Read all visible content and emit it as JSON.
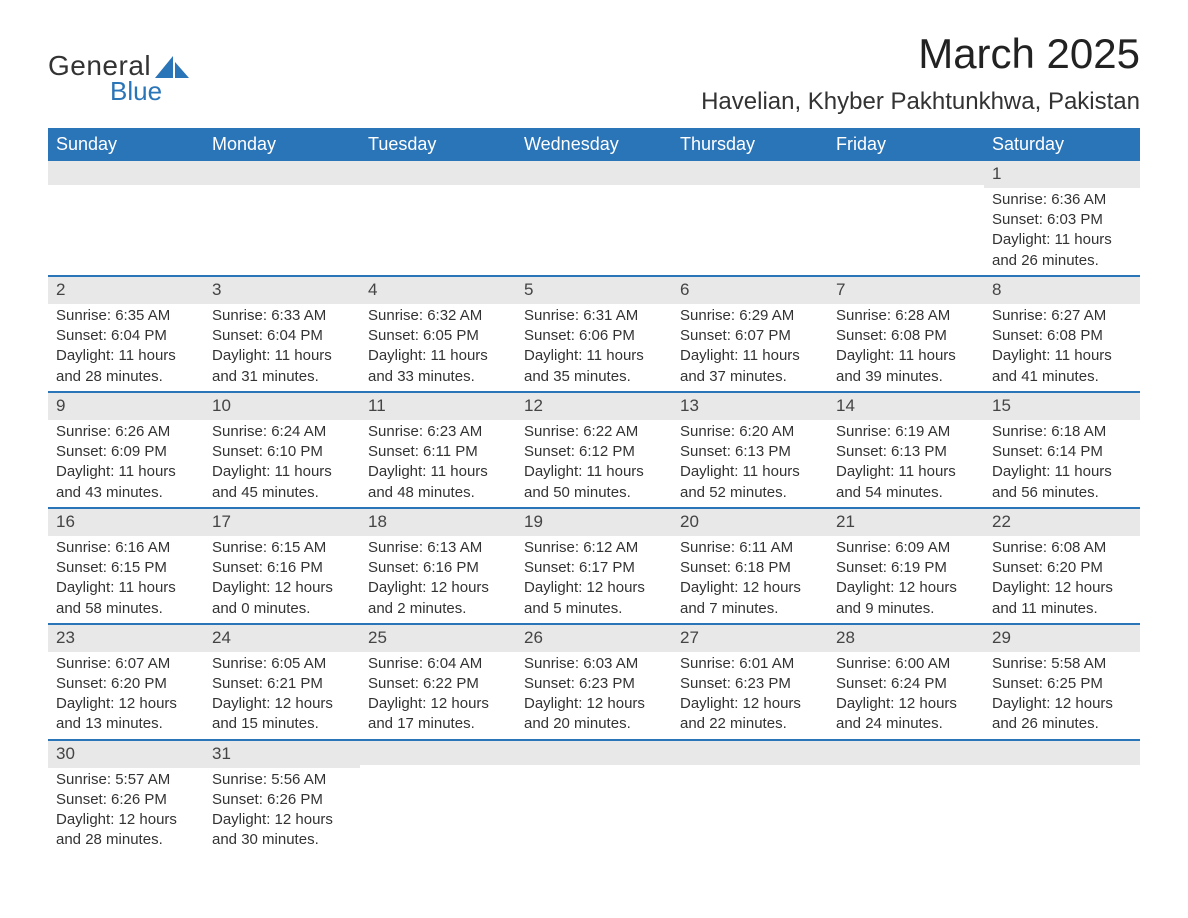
{
  "logo": {
    "text_general": "General",
    "text_blue": "Blue",
    "shape_color": "#2a74b8"
  },
  "title": "March 2025",
  "location": "Havelian, Khyber Pakhtunkhwa, Pakistan",
  "colors": {
    "header_bg": "#2a74b8",
    "header_text": "#ffffff",
    "daynum_bg": "#e8e8e8",
    "row_border": "#2a74b8",
    "body_text": "#333333",
    "page_bg": "#ffffff"
  },
  "day_headers": [
    "Sunday",
    "Monday",
    "Tuesday",
    "Wednesday",
    "Thursday",
    "Friday",
    "Saturday"
  ],
  "weeks": [
    [
      null,
      null,
      null,
      null,
      null,
      null,
      {
        "n": "1",
        "sr": "Sunrise: 6:36 AM",
        "ss": "Sunset: 6:03 PM",
        "d1": "Daylight: 11 hours",
        "d2": "and 26 minutes."
      }
    ],
    [
      {
        "n": "2",
        "sr": "Sunrise: 6:35 AM",
        "ss": "Sunset: 6:04 PM",
        "d1": "Daylight: 11 hours",
        "d2": "and 28 minutes."
      },
      {
        "n": "3",
        "sr": "Sunrise: 6:33 AM",
        "ss": "Sunset: 6:04 PM",
        "d1": "Daylight: 11 hours",
        "d2": "and 31 minutes."
      },
      {
        "n": "4",
        "sr": "Sunrise: 6:32 AM",
        "ss": "Sunset: 6:05 PM",
        "d1": "Daylight: 11 hours",
        "d2": "and 33 minutes."
      },
      {
        "n": "5",
        "sr": "Sunrise: 6:31 AM",
        "ss": "Sunset: 6:06 PM",
        "d1": "Daylight: 11 hours",
        "d2": "and 35 minutes."
      },
      {
        "n": "6",
        "sr": "Sunrise: 6:29 AM",
        "ss": "Sunset: 6:07 PM",
        "d1": "Daylight: 11 hours",
        "d2": "and 37 minutes."
      },
      {
        "n": "7",
        "sr": "Sunrise: 6:28 AM",
        "ss": "Sunset: 6:08 PM",
        "d1": "Daylight: 11 hours",
        "d2": "and 39 minutes."
      },
      {
        "n": "8",
        "sr": "Sunrise: 6:27 AM",
        "ss": "Sunset: 6:08 PM",
        "d1": "Daylight: 11 hours",
        "d2": "and 41 minutes."
      }
    ],
    [
      {
        "n": "9",
        "sr": "Sunrise: 6:26 AM",
        "ss": "Sunset: 6:09 PM",
        "d1": "Daylight: 11 hours",
        "d2": "and 43 minutes."
      },
      {
        "n": "10",
        "sr": "Sunrise: 6:24 AM",
        "ss": "Sunset: 6:10 PM",
        "d1": "Daylight: 11 hours",
        "d2": "and 45 minutes."
      },
      {
        "n": "11",
        "sr": "Sunrise: 6:23 AM",
        "ss": "Sunset: 6:11 PM",
        "d1": "Daylight: 11 hours",
        "d2": "and 48 minutes."
      },
      {
        "n": "12",
        "sr": "Sunrise: 6:22 AM",
        "ss": "Sunset: 6:12 PM",
        "d1": "Daylight: 11 hours",
        "d2": "and 50 minutes."
      },
      {
        "n": "13",
        "sr": "Sunrise: 6:20 AM",
        "ss": "Sunset: 6:13 PM",
        "d1": "Daylight: 11 hours",
        "d2": "and 52 minutes."
      },
      {
        "n": "14",
        "sr": "Sunrise: 6:19 AM",
        "ss": "Sunset: 6:13 PM",
        "d1": "Daylight: 11 hours",
        "d2": "and 54 minutes."
      },
      {
        "n": "15",
        "sr": "Sunrise: 6:18 AM",
        "ss": "Sunset: 6:14 PM",
        "d1": "Daylight: 11 hours",
        "d2": "and 56 minutes."
      }
    ],
    [
      {
        "n": "16",
        "sr": "Sunrise: 6:16 AM",
        "ss": "Sunset: 6:15 PM",
        "d1": "Daylight: 11 hours",
        "d2": "and 58 minutes."
      },
      {
        "n": "17",
        "sr": "Sunrise: 6:15 AM",
        "ss": "Sunset: 6:16 PM",
        "d1": "Daylight: 12 hours",
        "d2": "and 0 minutes."
      },
      {
        "n": "18",
        "sr": "Sunrise: 6:13 AM",
        "ss": "Sunset: 6:16 PM",
        "d1": "Daylight: 12 hours",
        "d2": "and 2 minutes."
      },
      {
        "n": "19",
        "sr": "Sunrise: 6:12 AM",
        "ss": "Sunset: 6:17 PM",
        "d1": "Daylight: 12 hours",
        "d2": "and 5 minutes."
      },
      {
        "n": "20",
        "sr": "Sunrise: 6:11 AM",
        "ss": "Sunset: 6:18 PM",
        "d1": "Daylight: 12 hours",
        "d2": "and 7 minutes."
      },
      {
        "n": "21",
        "sr": "Sunrise: 6:09 AM",
        "ss": "Sunset: 6:19 PM",
        "d1": "Daylight: 12 hours",
        "d2": "and 9 minutes."
      },
      {
        "n": "22",
        "sr": "Sunrise: 6:08 AM",
        "ss": "Sunset: 6:20 PM",
        "d1": "Daylight: 12 hours",
        "d2": "and 11 minutes."
      }
    ],
    [
      {
        "n": "23",
        "sr": "Sunrise: 6:07 AM",
        "ss": "Sunset: 6:20 PM",
        "d1": "Daylight: 12 hours",
        "d2": "and 13 minutes."
      },
      {
        "n": "24",
        "sr": "Sunrise: 6:05 AM",
        "ss": "Sunset: 6:21 PM",
        "d1": "Daylight: 12 hours",
        "d2": "and 15 minutes."
      },
      {
        "n": "25",
        "sr": "Sunrise: 6:04 AM",
        "ss": "Sunset: 6:22 PM",
        "d1": "Daylight: 12 hours",
        "d2": "and 17 minutes."
      },
      {
        "n": "26",
        "sr": "Sunrise: 6:03 AM",
        "ss": "Sunset: 6:23 PM",
        "d1": "Daylight: 12 hours",
        "d2": "and 20 minutes."
      },
      {
        "n": "27",
        "sr": "Sunrise: 6:01 AM",
        "ss": "Sunset: 6:23 PM",
        "d1": "Daylight: 12 hours",
        "d2": "and 22 minutes."
      },
      {
        "n": "28",
        "sr": "Sunrise: 6:00 AM",
        "ss": "Sunset: 6:24 PM",
        "d1": "Daylight: 12 hours",
        "d2": "and 24 minutes."
      },
      {
        "n": "29",
        "sr": "Sunrise: 5:58 AM",
        "ss": "Sunset: 6:25 PM",
        "d1": "Daylight: 12 hours",
        "d2": "and 26 minutes."
      }
    ],
    [
      {
        "n": "30",
        "sr": "Sunrise: 5:57 AM",
        "ss": "Sunset: 6:26 PM",
        "d1": "Daylight: 12 hours",
        "d2": "and 28 minutes."
      },
      {
        "n": "31",
        "sr": "Sunrise: 5:56 AM",
        "ss": "Sunset: 6:26 PM",
        "d1": "Daylight: 12 hours",
        "d2": "and 30 minutes."
      },
      null,
      null,
      null,
      null,
      null
    ]
  ]
}
